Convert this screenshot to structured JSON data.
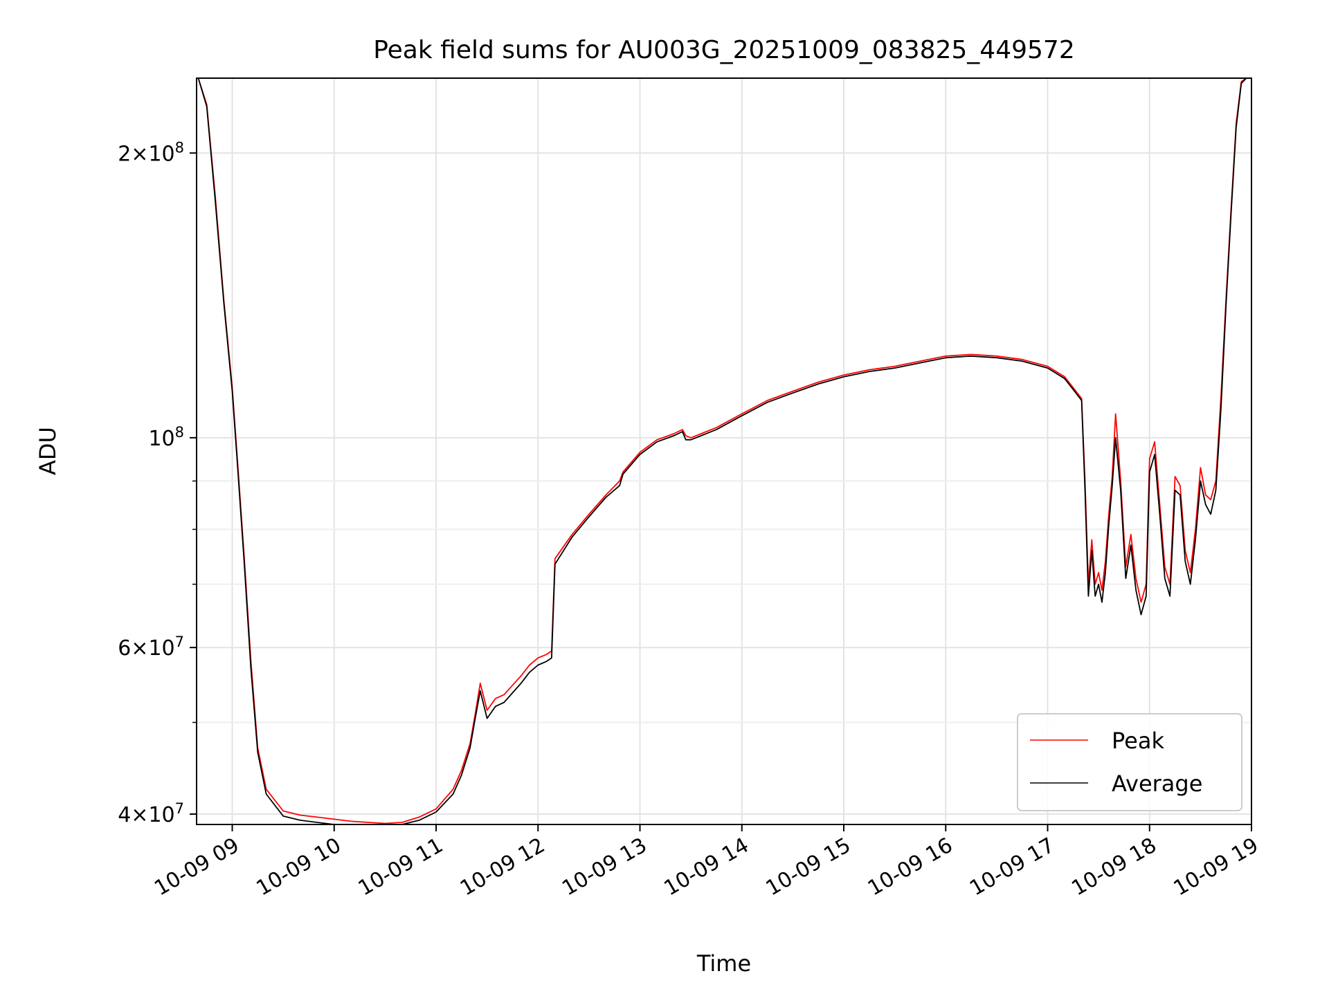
{
  "chart_data": {
    "type": "line",
    "title": "Peak field sums for AU003G_20251009_083825_449572",
    "xlabel": "Time",
    "ylabel": "ADU",
    "yscale": "log",
    "xlim": [
      "2025-10-09 08:39",
      "2025-10-09 19:00"
    ],
    "ylim": [
      39000000,
      240000000
    ],
    "grid": true,
    "legend_position": "lower-right",
    "x_ticks": [
      {
        "t": "2025-10-09 09:00",
        "label": "10-09 09"
      },
      {
        "t": "2025-10-09 10:00",
        "label": "10-09 10"
      },
      {
        "t": "2025-10-09 11:00",
        "label": "10-09 11"
      },
      {
        "t": "2025-10-09 12:00",
        "label": "10-09 12"
      },
      {
        "t": "2025-10-09 13:00",
        "label": "10-09 13"
      },
      {
        "t": "2025-10-09 14:00",
        "label": "10-09 14"
      },
      {
        "t": "2025-10-09 15:00",
        "label": "10-09 15"
      },
      {
        "t": "2025-10-09 16:00",
        "label": "10-09 16"
      },
      {
        "t": "2025-10-09 17:00",
        "label": "10-09 17"
      },
      {
        "t": "2025-10-09 18:00",
        "label": "10-09 18"
      },
      {
        "t": "2025-10-09 19:00",
        "label": "10-09 19"
      }
    ],
    "y_major_ticks": [
      {
        "v": 40000000,
        "mant": "4",
        "exp": "7"
      },
      {
        "v": 60000000,
        "mant": "6",
        "exp": "7"
      },
      {
        "v": 100000000,
        "mant": "",
        "exp": "8"
      },
      {
        "v": 200000000,
        "mant": "2",
        "exp": "8"
      }
    ],
    "y_minor_ticks": [
      50000000,
      70000000,
      80000000,
      90000000
    ],
    "series": [
      {
        "name": "Peak",
        "color": "#ff0000",
        "x": [
          "2025-10-09 08:40",
          "2025-10-09 08:45",
          "2025-10-09 08:50",
          "2025-10-09 08:55",
          "2025-10-09 09:00",
          "2025-10-09 09:03",
          "2025-10-09 09:07",
          "2025-10-09 09:11",
          "2025-10-09 09:15",
          "2025-10-09 09:20",
          "2025-10-09 09:30",
          "2025-10-09 09:40",
          "2025-10-09 09:50",
          "2025-10-09 10:00",
          "2025-10-09 10:10",
          "2025-10-09 10:20",
          "2025-10-09 10:30",
          "2025-10-09 10:40",
          "2025-10-09 10:50",
          "2025-10-09 11:00",
          "2025-10-09 11:10",
          "2025-10-09 11:15",
          "2025-10-09 11:20",
          "2025-10-09 11:23",
          "2025-10-09 11:26",
          "2025-10-09 11:30",
          "2025-10-09 11:35",
          "2025-10-09 11:40",
          "2025-10-09 11:50",
          "2025-10-09 11:55",
          "2025-10-09 12:00",
          "2025-10-09 12:05",
          "2025-10-09 12:08",
          "2025-10-09 12:10",
          "2025-10-09 12:20",
          "2025-10-09 12:30",
          "2025-10-09 12:40",
          "2025-10-09 12:48",
          "2025-10-09 12:50",
          "2025-10-09 13:00",
          "2025-10-09 13:10",
          "2025-10-09 13:20",
          "2025-10-09 13:25",
          "2025-10-09 13:27",
          "2025-10-09 13:30",
          "2025-10-09 13:45",
          "2025-10-09 14:00",
          "2025-10-09 14:15",
          "2025-10-09 14:30",
          "2025-10-09 14:45",
          "2025-10-09 15:00",
          "2025-10-09 15:15",
          "2025-10-09 15:30",
          "2025-10-09 15:45",
          "2025-10-09 16:00",
          "2025-10-09 16:15",
          "2025-10-09 16:30",
          "2025-10-09 16:45",
          "2025-10-09 17:00",
          "2025-10-09 17:10",
          "2025-10-09 17:15",
          "2025-10-09 17:20",
          "2025-10-09 17:22",
          "2025-10-09 17:24",
          "2025-10-09 17:26",
          "2025-10-09 17:28",
          "2025-10-09 17:30",
          "2025-10-09 17:32",
          "2025-10-09 17:34",
          "2025-10-09 17:36",
          "2025-10-09 17:38",
          "2025-10-09 17:40",
          "2025-10-09 17:43",
          "2025-10-09 17:46",
          "2025-10-09 17:49",
          "2025-10-09 17:52",
          "2025-10-09 17:55",
          "2025-10-09 17:58",
          "2025-10-09 18:00",
          "2025-10-09 18:03",
          "2025-10-09 18:06",
          "2025-10-09 18:09",
          "2025-10-09 18:12",
          "2025-10-09 18:15",
          "2025-10-09 18:18",
          "2025-10-09 18:21",
          "2025-10-09 18:24",
          "2025-10-09 18:27",
          "2025-10-09 18:30",
          "2025-10-09 18:33",
          "2025-10-09 18:36",
          "2025-10-09 18:39",
          "2025-10-09 18:42",
          "2025-10-09 18:45",
          "2025-10-09 18:48",
          "2025-10-09 18:51",
          "2025-10-09 18:54",
          "2025-10-09 18:57"
        ],
        "values": [
          240000000,
          225000000,
          180000000,
          140000000,
          113000000,
          95000000,
          75000000,
          58000000,
          47000000,
          42500000,
          40300000,
          39900000,
          39700000,
          39500000,
          39300000,
          39200000,
          39100000,
          39200000,
          39700000,
          40500000,
          42500000,
          44500000,
          47500000,
          51000000,
          55000000,
          51500000,
          53000000,
          53500000,
          56000000,
          57500000,
          58500000,
          59000000,
          59500000,
          74500000,
          79000000,
          83000000,
          87000000,
          90000000,
          92000000,
          96500000,
          99500000,
          101000000,
          102000000,
          100500000,
          100000000,
          102500000,
          106000000,
          109500000,
          112000000,
          114500000,
          116500000,
          118000000,
          119000000,
          120500000,
          122000000,
          122500000,
          122000000,
          121000000,
          119000000,
          116000000,
          113000000,
          110000000,
          90000000,
          70000000,
          78000000,
          70000000,
          72000000,
          69000000,
          74000000,
          83000000,
          91000000,
          106000000,
          90000000,
          73000000,
          79000000,
          71000000,
          67000000,
          70000000,
          95000000,
          99000000,
          85000000,
          73000000,
          70000000,
          91000000,
          89000000,
          76000000,
          72000000,
          80000000,
          93000000,
          87000000,
          86000000,
          90000000,
          110000000,
          140000000,
          175000000,
          215000000,
          238000000,
          240000000
        ]
      },
      {
        "name": "Average",
        "color": "#000000",
        "x": [
          "2025-10-09 08:40",
          "2025-10-09 08:45",
          "2025-10-09 08:50",
          "2025-10-09 08:55",
          "2025-10-09 09:00",
          "2025-10-09 09:03",
          "2025-10-09 09:07",
          "2025-10-09 09:11",
          "2025-10-09 09:15",
          "2025-10-09 09:20",
          "2025-10-09 09:30",
          "2025-10-09 09:40",
          "2025-10-09 09:50",
          "2025-10-09 10:00",
          "2025-10-09 10:10",
          "2025-10-09 10:20",
          "2025-10-09 10:30",
          "2025-10-09 10:40",
          "2025-10-09 10:50",
          "2025-10-09 11:00",
          "2025-10-09 11:10",
          "2025-10-09 11:15",
          "2025-10-09 11:20",
          "2025-10-09 11:23",
          "2025-10-09 11:26",
          "2025-10-09 11:30",
          "2025-10-09 11:35",
          "2025-10-09 11:40",
          "2025-10-09 11:50",
          "2025-10-09 11:55",
          "2025-10-09 12:00",
          "2025-10-09 12:05",
          "2025-10-09 12:08",
          "2025-10-09 12:10",
          "2025-10-09 12:20",
          "2025-10-09 12:30",
          "2025-10-09 12:40",
          "2025-10-09 12:48",
          "2025-10-09 12:50",
          "2025-10-09 13:00",
          "2025-10-09 13:10",
          "2025-10-09 13:20",
          "2025-10-09 13:25",
          "2025-10-09 13:27",
          "2025-10-09 13:30",
          "2025-10-09 13:45",
          "2025-10-09 14:00",
          "2025-10-09 14:15",
          "2025-10-09 14:30",
          "2025-10-09 14:45",
          "2025-10-09 15:00",
          "2025-10-09 15:15",
          "2025-10-09 15:30",
          "2025-10-09 15:45",
          "2025-10-09 16:00",
          "2025-10-09 16:15",
          "2025-10-09 16:30",
          "2025-10-09 16:45",
          "2025-10-09 17:00",
          "2025-10-09 17:10",
          "2025-10-09 17:15",
          "2025-10-09 17:20",
          "2025-10-09 17:22",
          "2025-10-09 17:24",
          "2025-10-09 17:26",
          "2025-10-09 17:28",
          "2025-10-09 17:30",
          "2025-10-09 17:32",
          "2025-10-09 17:34",
          "2025-10-09 17:36",
          "2025-10-09 17:38",
          "2025-10-09 17:40",
          "2025-10-09 17:43",
          "2025-10-09 17:46",
          "2025-10-09 17:49",
          "2025-10-09 17:52",
          "2025-10-09 17:55",
          "2025-10-09 17:58",
          "2025-10-09 18:00",
          "2025-10-09 18:03",
          "2025-10-09 18:06",
          "2025-10-09 18:09",
          "2025-10-09 18:12",
          "2025-10-09 18:15",
          "2025-10-09 18:18",
          "2025-10-09 18:21",
          "2025-10-09 18:24",
          "2025-10-09 18:27",
          "2025-10-09 18:30",
          "2025-10-09 18:33",
          "2025-10-09 18:36",
          "2025-10-09 18:39",
          "2025-10-09 18:42",
          "2025-10-09 18:45",
          "2025-10-09 18:48",
          "2025-10-09 18:51",
          "2025-10-09 18:54",
          "2025-10-09 18:57"
        ],
        "values": [
          240000000,
          224000000,
          178000000,
          139000000,
          112000000,
          94000000,
          74000000,
          57000000,
          46500000,
          42000000,
          39800000,
          39400000,
          39200000,
          39000000,
          38900000,
          38800000,
          38700000,
          38900000,
          39400000,
          40200000,
          42000000,
          44000000,
          47000000,
          50500000,
          54000000,
          50500000,
          52000000,
          52500000,
          55000000,
          56500000,
          57500000,
          58000000,
          58500000,
          73500000,
          78500000,
          82500000,
          86500000,
          89000000,
          91500000,
          96000000,
          99000000,
          100500000,
          101500000,
          99500000,
          99500000,
          102000000,
          105500000,
          109000000,
          111500000,
          114000000,
          116000000,
          117500000,
          118500000,
          120000000,
          121500000,
          122000000,
          121500000,
          120500000,
          118500000,
          115500000,
          112500000,
          109500000,
          88000000,
          68000000,
          76000000,
          68000000,
          70000000,
          67000000,
          72000000,
          81000000,
          89000000,
          100000000,
          88000000,
          71000000,
          77000000,
          69000000,
          65000000,
          68000000,
          92000000,
          96000000,
          83000000,
          71000000,
          68000000,
          88000000,
          87000000,
          74000000,
          70000000,
          78000000,
          90000000,
          85000000,
          83000000,
          88000000,
          107000000,
          138000000,
          173000000,
          213000000,
          237000000,
          240000000
        ]
      }
    ]
  }
}
